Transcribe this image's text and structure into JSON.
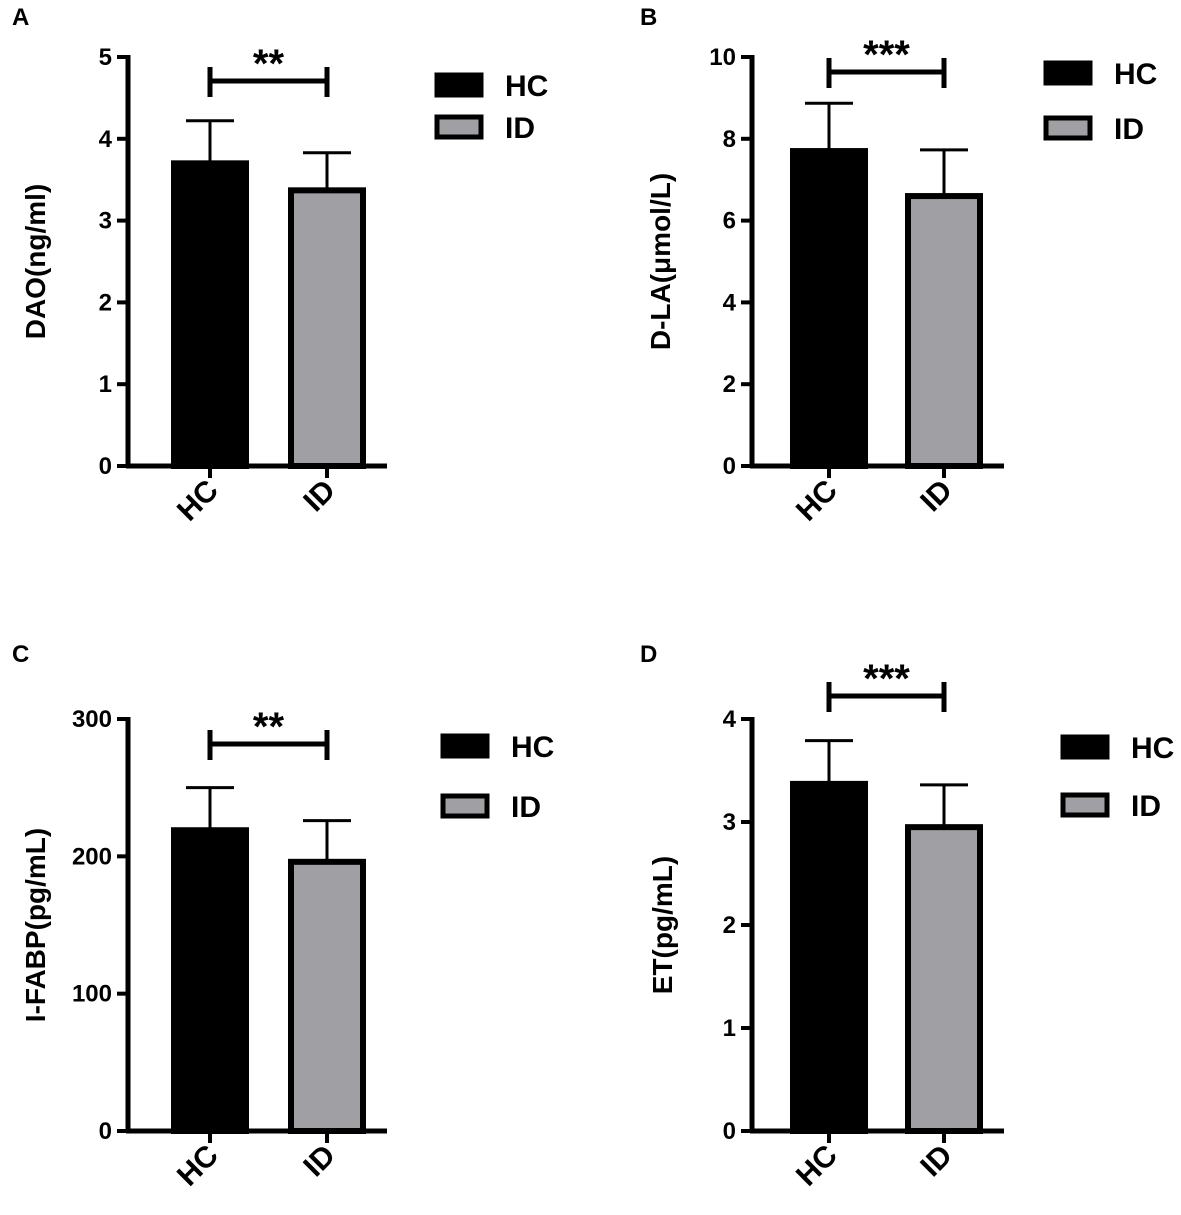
{
  "colors": {
    "HC": "#000000",
    "ID": "#a0a0a4",
    "outline": "#000000"
  },
  "chart_data": [
    {
      "panel": "A",
      "type": "bar",
      "categories": [
        "HC",
        "ID"
      ],
      "values": [
        3.7,
        3.37
      ],
      "errors": [
        0.52,
        0.46
      ],
      "ylabel": "DAO(ng/ml)",
      "ylim": [
        0,
        5
      ],
      "yticks": [
        0,
        1,
        2,
        3,
        4,
        5
      ],
      "yticks_labels": [
        "0",
        "1",
        "2",
        "3",
        "4",
        "5"
      ],
      "significance": "**",
      "legend": [
        "HC",
        "ID"
      ],
      "grid": false
    },
    {
      "panel": "B",
      "type": "bar",
      "categories": [
        "HC",
        "ID"
      ],
      "values": [
        7.7,
        6.6
      ],
      "errors": [
        1.17,
        1.13
      ],
      "ylabel": "D-LA(μmol/L)",
      "ylim": [
        0,
        10
      ],
      "yticks": [
        0,
        2,
        4,
        6,
        8,
        10
      ],
      "yticks_labels": [
        "0",
        "2",
        "4",
        "6",
        "8",
        "10"
      ],
      "significance": "***",
      "legend": [
        "HC",
        "ID"
      ],
      "grid": false
    },
    {
      "panel": "C",
      "type": "bar",
      "categories": [
        "HC",
        "ID"
      ],
      "values": [
        219,
        196
      ],
      "errors": [
        31,
        30
      ],
      "ylabel": "I-FABP(pg/mL)",
      "ylim": [
        0,
        300
      ],
      "yticks": [
        0,
        100,
        200,
        300
      ],
      "yticks_labels": [
        "0",
        "100",
        "200",
        "300"
      ],
      "significance": "**",
      "legend": [
        "HC",
        "ID"
      ],
      "grid": false
    },
    {
      "panel": "D",
      "type": "bar",
      "categories": [
        "HC",
        "ID"
      ],
      "values": [
        3.37,
        2.95
      ],
      "errors": [
        0.42,
        0.41
      ],
      "ylabel": "ET(pg/mL)",
      "ylim": [
        0,
        4
      ],
      "yticks": [
        0,
        1,
        2,
        3,
        4
      ],
      "yticks_labels": [
        "0",
        "1",
        "2",
        "3",
        "4"
      ],
      "significance": "***",
      "legend": [
        "HC",
        "ID"
      ],
      "grid": false
    }
  ]
}
